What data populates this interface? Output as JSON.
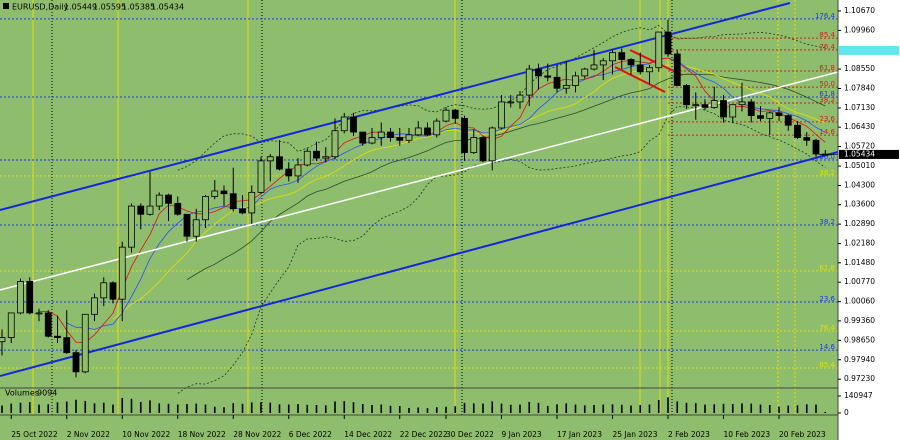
{
  "chart_data": {
    "type": "candlestick",
    "symbol": "EURUSD,Daily",
    "categories": [
      null,
      "25 Oct 2022",
      null,
      null,
      null,
      null,
      null,
      "2 Nov 2022",
      null,
      null,
      null,
      null,
      null,
      "10 Nov 2022",
      null,
      null,
      null,
      null,
      null,
      "18 Nov 2022",
      null,
      null,
      null,
      null,
      null,
      "28 Nov 2022",
      null,
      null,
      null,
      null,
      null,
      "6 Dec 2022",
      null,
      null,
      null,
      null,
      null,
      "14 Dec 2022",
      null,
      null,
      null,
      null,
      null,
      "22 Dec 2022",
      null,
      null,
      null,
      null,
      "30 Dec 2022",
      null,
      null,
      null,
      null,
      null,
      "9 Jan 2023",
      null,
      null,
      null,
      null,
      null,
      "17 Jan 2023",
      null,
      null,
      null,
      null,
      null,
      "25 Jan 2023",
      null,
      null,
      null,
      null,
      null,
      "2 Feb 2023",
      null,
      null,
      null,
      null,
      null,
      "10 Feb 2023",
      null,
      null,
      null,
      null,
      null,
      "20 Feb 2023",
      null,
      null,
      null,
      null,
      null
    ],
    "open": [
      0.986,
      0.9875,
      0.9965,
      1.008,
      0.9965,
      0.9965,
      0.988,
      0.9875,
      0.982,
      0.975,
      0.996,
      1.002,
      1.0075,
      1.0015,
      1.0205,
      1.0355,
      1.0325,
      1.0355,
      1.0395,
      1.0365,
      1.0325,
      1.0245,
      1.0305,
      1.039,
      1.041,
      1.04,
      1.0345,
      1.033,
      1.0405,
      1.052,
      1.0535,
      1.049,
      1.0465,
      1.0505,
      1.0555,
      1.053,
      1.0535,
      1.063,
      1.068,
      1.0625,
      1.0585,
      1.0605,
      1.0625,
      1.0605,
      1.0595,
      1.0615,
      1.064,
      1.0615,
      1.0665,
      1.0705,
      1.0675,
      1.055,
      1.0605,
      1.052,
      1.064,
      1.0735,
      1.0735,
      1.076,
      1.0855,
      1.083,
      1.0825,
      1.0785,
      1.0795,
      1.083,
      1.0855,
      1.087,
      1.0885,
      1.0915,
      1.089,
      1.087,
      1.0845,
      1.086,
      1.099,
      1.091,
      1.0795,
      1.0725,
      1.0725,
      1.0715,
      1.074,
      1.068,
      1.0725,
      1.0735,
      1.0685,
      1.0675,
      1.0695,
      1.0685,
      1.065,
      1.0605,
      1.0595,
      1.05449
    ],
    "high": [
      0.9905,
      0.9965,
      1.009,
      1.0095,
      0.998,
      0.9975,
      0.9955,
      0.9975,
      0.983,
      0.996,
      1.0035,
      1.0095,
      1.008,
      1.0225,
      1.0365,
      1.0365,
      1.048,
      1.0405,
      1.04,
      1.039,
      1.0325,
      1.0345,
      1.0395,
      1.045,
      1.043,
      1.0495,
      1.0395,
      1.043,
      1.0535,
      1.0545,
      1.0595,
      1.0515,
      1.053,
      1.0565,
      1.059,
      1.057,
      1.0675,
      1.0695,
      1.0695,
      1.0625,
      1.064,
      1.066,
      1.064,
      1.064,
      1.064,
      1.0665,
      1.066,
      1.0675,
      1.0715,
      1.071,
      1.0685,
      1.0635,
      1.061,
      1.0645,
      1.076,
      1.076,
      1.0775,
      1.087,
      1.0875,
      1.0875,
      1.087,
      1.0885,
      1.0845,
      1.086,
      1.0925,
      1.0895,
      1.0925,
      1.093,
      1.0895,
      1.0915,
      1.087,
      1.099,
      1.1035,
      1.0925,
      1.08,
      1.077,
      1.0745,
      1.079,
      1.076,
      1.0725,
      1.0805,
      1.0745,
      1.072,
      1.07,
      1.0715,
      1.069,
      1.0665,
      1.0625,
      1.06,
      1.05595
    ],
    "low": [
      0.981,
      0.9855,
      0.996,
      0.996,
      0.9935,
      0.9875,
      0.9855,
      0.9815,
      0.973,
      0.9745,
      0.9935,
      0.999,
      1.0,
      0.9935,
      1.0185,
      1.027,
      1.032,
      1.034,
      1.03,
      1.032,
      1.0225,
      1.0225,
      1.0275,
      1.038,
      1.0355,
      1.0335,
      1.0325,
      1.029,
      1.04,
      1.0445,
      1.0485,
      1.0445,
      1.044,
      1.05,
      1.052,
      1.0515,
      1.0525,
      1.062,
      1.061,
      1.0575,
      1.058,
      1.0575,
      1.059,
      1.0575,
      1.0585,
      1.061,
      1.061,
      1.0605,
      1.066,
      1.0655,
      1.052,
      1.0545,
      1.0515,
      1.0485,
      1.0635,
      1.0715,
      1.071,
      1.072,
      1.078,
      1.081,
      1.077,
      1.0765,
      1.077,
      1.082,
      1.085,
      1.0815,
      1.0835,
      1.0855,
      1.0835,
      1.0835,
      1.08,
      1.0845,
      1.09,
      1.0795,
      1.071,
      1.067,
      1.0705,
      1.071,
      1.066,
      1.066,
      1.07,
      1.066,
      1.0665,
      1.0615,
      1.0665,
      1.063,
      1.06,
      1.0575,
      1.0535,
      1.05385
    ],
    "close": [
      0.9875,
      0.9965,
      1.008,
      0.9965,
      0.9965,
      0.988,
      0.9875,
      0.982,
      0.975,
      0.996,
      1.002,
      1.0075,
      1.0015,
      1.0205,
      1.0355,
      1.0325,
      1.0355,
      1.0395,
      1.0365,
      1.0325,
      1.0245,
      1.0305,
      1.039,
      1.041,
      1.04,
      1.0345,
      1.033,
      1.0405,
      1.052,
      1.0535,
      1.049,
      1.0465,
      1.0505,
      1.0555,
      1.053,
      1.0535,
      1.063,
      1.068,
      1.0625,
      1.0585,
      1.0605,
      1.0625,
      1.0605,
      1.0595,
      1.0615,
      1.064,
      1.0615,
      1.0665,
      1.0705,
      1.0675,
      1.055,
      1.0605,
      1.052,
      1.064,
      1.0735,
      1.0735,
      1.076,
      1.0855,
      1.083,
      1.0825,
      1.0785,
      1.0795,
      1.083,
      1.0855,
      1.087,
      1.0885,
      1.0915,
      1.089,
      1.087,
      1.0845,
      1.086,
      1.099,
      1.091,
      1.0795,
      1.0725,
      1.0725,
      1.0715,
      1.074,
      1.068,
      1.0725,
      1.0735,
      1.0685,
      1.0675,
      1.0695,
      1.0685,
      1.065,
      1.0605,
      1.0595,
      1.0545,
      1.05434
    ],
    "ylim": [
      0.9691,
      1.1107
    ],
    "yticks": [
      {
        "value": 1.1067,
        "label": "1.10670"
      },
      {
        "value": 1.0996,
        "label": "1.09960"
      },
      {
        "value": 1.0855,
        "label": "1.08550"
      },
      {
        "value": 1.0784,
        "label": "1.07840"
      },
      {
        "value": 1.0713,
        "label": "1.07130"
      },
      {
        "value": 1.0643,
        "label": "1.06430"
      },
      {
        "value": 1.0572,
        "label": "1.05720"
      },
      {
        "value": 1.0501,
        "label": "1.05010"
      },
      {
        "value": 1.043,
        "label": "1.04300"
      },
      {
        "value": 1.036,
        "label": "1.03600"
      },
      {
        "value": 1.0289,
        "label": "1.02890"
      },
      {
        "value": 1.0218,
        "label": "1.02180"
      },
      {
        "value": 1.0148,
        "label": "1.01480"
      },
      {
        "value": 1.0077,
        "label": "1.00770"
      },
      {
        "value": 1.0006,
        "label": "1.00060"
      },
      {
        "value": 0.9936,
        "label": "0.99360"
      },
      {
        "value": 0.9865,
        "label": "0.98650"
      },
      {
        "value": 0.9794,
        "label": "0.97940"
      },
      {
        "value": 0.9723,
        "label": "0.97230"
      }
    ],
    "grid": false,
    "background": "#8fbd6e",
    "bull_color": "#8fbd6e",
    "bear_color": "#000000",
    "levels": [
      {
        "label": "176.4",
        "value": 1.1038,
        "color": "#1f35ff"
      },
      {
        "label": "85.4",
        "value": 1.0968,
        "color": "#d02020"
      },
      {
        "label": "76.4",
        "value": 1.0925,
        "color": "#d02020"
      },
      {
        "label": "61.8",
        "value": 1.0848,
        "color": "#d02020"
      },
      {
        "label": "50.0",
        "value": 1.0789,
        "color": "#d02020"
      },
      {
        "label": "61.8",
        "value": 1.0753,
        "color": "#1f35ff"
      },
      {
        "label": "38.2",
        "value": 1.0731,
        "color": "#d02020"
      },
      {
        "label": "23.6",
        "value": 1.0662,
        "color": "#d02020"
      },
      {
        "label": "14.6",
        "value": 1.0614,
        "color": "#d02020"
      },
      {
        "label": "50.0",
        "value": 1.0523,
        "color": "#1f35ff"
      },
      {
        "label": "38.2",
        "value": 1.0465,
        "color": "#e6e000"
      },
      {
        "label": "38.2",
        "value": 1.0286,
        "color": "#1f35ff"
      },
      {
        "label": "61.8",
        "value": 1.0118,
        "color": "#e6e000"
      },
      {
        "label": "23.6",
        "value": 1.0005,
        "color": "#1f35ff"
      },
      {
        "label": "76.4",
        "value": 0.9899,
        "color": "#e6e000"
      },
      {
        "label": "14.6",
        "value": 0.9829,
        "color": "#1f35ff"
      },
      {
        "label": "85.4",
        "value": 0.9764,
        "color": "#e6e000"
      }
    ],
    "volume": {
      "title": "Volumes",
      "values": [
        62000,
        78000,
        85000,
        90000,
        70000,
        72000,
        88000,
        95000,
        110000,
        99000,
        80000,
        86000,
        70000,
        125000,
        118000,
        92000,
        105000,
        80000,
        76000,
        70000,
        74000,
        78000,
        70000,
        52000,
        48000,
        82000,
        76000,
        88000,
        90000,
        86000,
        72000,
        70000,
        74000,
        68000,
        66000,
        64000,
        96000,
        98000,
        90000,
        74000,
        66000,
        70000,
        60000,
        58000,
        42000,
        46000,
        40000,
        48000,
        52000,
        56000,
        84000,
        80000,
        78000,
        96000,
        78000,
        68000,
        70000,
        92000,
        84000,
        58000,
        72000,
        80000,
        70000,
        64000,
        66000,
        70000,
        72000,
        68000,
        62000,
        66000,
        70000,
        108000,
        130000,
        96000,
        84000,
        82000,
        70000,
        72000,
        76000,
        74000,
        80000,
        78000,
        70000,
        66000,
        52000,
        62000,
        64000,
        72000,
        70000,
        9094
      ],
      "ylim": [
        0,
        140947
      ],
      "yticks": [
        0,
        140947
      ]
    }
  }
}
